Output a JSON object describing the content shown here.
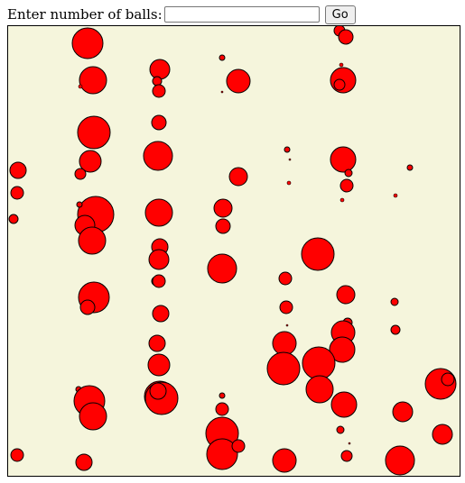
{
  "controls": {
    "prompt_label": "Enter number of balls:",
    "input_value": "",
    "input_placeholder": "",
    "go_label": "Go"
  },
  "canvas": {
    "background_color": "#f5f5dc",
    "border_color": "#000000",
    "ball_fill_color": "#ff0000",
    "ball_stroke_color": "#000000"
  }
}
